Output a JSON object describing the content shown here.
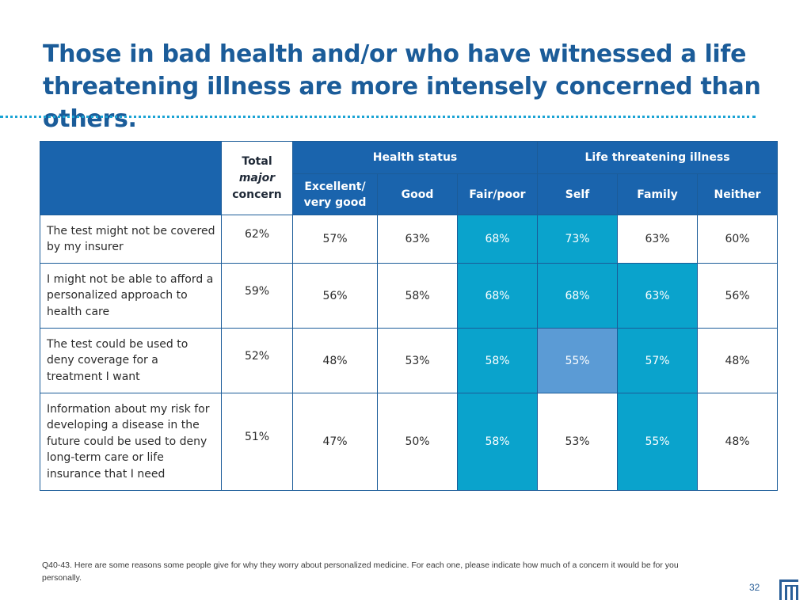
{
  "slide": {
    "title_lines": [
      "Those in bad health and/or who have witnessed a life",
      "threatening illness are more intensely concerned than others."
    ],
    "page_number": "32",
    "footnote": "Q40-43. Here are some reasons some people give for why they worry about personalized medicine. For each one, please indicate how much of a concern it would be for you personally."
  },
  "table": {
    "total_header": {
      "line1": "Total",
      "line2": "major",
      "line3": "concern"
    },
    "group_headers": {
      "health_status": "Health status",
      "life_threatening": "Life threatening illness"
    },
    "columns": {
      "excellent": "Excellent/",
      "excellent_line2": "very good",
      "good": "Good",
      "fair_poor": "Fair/poor",
      "self": "Self",
      "family": "Family",
      "neither": "Neither"
    },
    "rows": [
      {
        "label": "The test might not be covered by my insurer",
        "total": "62%",
        "values": [
          "57%",
          "63%",
          "68%",
          "73%",
          "63%",
          "60%"
        ]
      },
      {
        "label": "I might not be able to afford a personalized approach to health care",
        "total": "59%",
        "values": [
          "56%",
          "58%",
          "68%",
          "68%",
          "63%",
          "56%"
        ]
      },
      {
        "label": "The test could be used to deny coverage for a treatment I want",
        "total": "52%",
        "values": [
          "48%",
          "53%",
          "58%",
          "55%",
          "57%",
          "48%"
        ]
      },
      {
        "label": "Information about my risk for developing a disease in the future could be used to deny long-term care or life insurance that I need",
        "total": "51%",
        "values": [
          "47%",
          "50%",
          "58%",
          "53%",
          "55%",
          "48%"
        ]
      }
    ],
    "highlight_colors": {
      "strong": "#0aa3cc",
      "medium": "#5b9bd5",
      "header": "#1a64ad"
    }
  }
}
